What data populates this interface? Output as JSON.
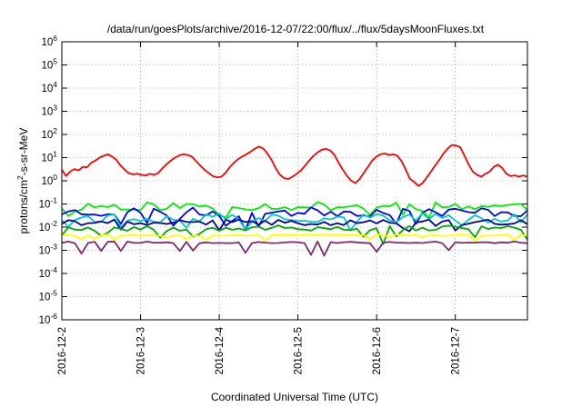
{
  "chart_data": {
    "type": "line",
    "title": "/data/run/goesPlots/archive/2016-12-07/22:00/flux/../flux/5daysMoonFluxes.txt",
    "xlabel": "Coordinated Universal Time (UTC)",
    "ylabel": {
      "pre": "protons/cm",
      "sup": "2",
      "post": "-s-sr-MeV"
    },
    "y_scale": "log",
    "ylim": [
      1e-06,
      1000000.0
    ],
    "y_ticks": [
      {
        "value": 1000000.0,
        "base": "10",
        "exp": "6"
      },
      {
        "value": 100000.0,
        "base": "10",
        "exp": "5"
      },
      {
        "value": 10000.0,
        "base": "10",
        "exp": "4"
      },
      {
        "value": 1000.0,
        "base": "10",
        "exp": "3"
      },
      {
        "value": 100.0,
        "base": "10",
        "exp": "2"
      },
      {
        "value": 10.0,
        "base": "10",
        "exp": "1"
      },
      {
        "value": 1.0,
        "base": "10",
        "exp": "0"
      },
      {
        "value": 0.1,
        "base": "10",
        "exp": "-1"
      },
      {
        "value": 0.01,
        "base": "10",
        "exp": "-2"
      },
      {
        "value": 0.001,
        "base": "10",
        "exp": "-3"
      },
      {
        "value": 0.0001,
        "base": "10",
        "exp": "-4"
      },
      {
        "value": 1e-05,
        "base": "10",
        "exp": "-5"
      },
      {
        "value": 1e-06,
        "base": "10",
        "exp": "-6"
      }
    ],
    "xlim": [
      "2016-12-02",
      "2016-12-07T22:00"
    ],
    "x_ticks": [
      "2016-12-2",
      "2016-12-3",
      "2016-12-4",
      "2016-12-5",
      "2016-12-6",
      "2016-12-7"
    ],
    "grid": true,
    "x_step_hours": 2,
    "series": [
      {
        "color": "#ff0000",
        "values": [
          3,
          1.6,
          2.5,
          3.2,
          2.8,
          4.0,
          3.8,
          6.0,
          7.5,
          10.0,
          12.0,
          14.0,
          11.0,
          8.0,
          4.5,
          3.0,
          2.1,
          1.9,
          2.0,
          1.8,
          1.7,
          2.0,
          1.8,
          2.2,
          3.5,
          5.2,
          7.5,
          10.0,
          12.5,
          14.0,
          13.0,
          11.0,
          7.0,
          4.5,
          3.0,
          2.2,
          1.6,
          1.4,
          1.5,
          2.2,
          3.8,
          6.0,
          8.5,
          11.0,
          14.0,
          18.0,
          24.0,
          30.0,
          25.0,
          15.0,
          8.0,
          3.5,
          1.8,
          1.3,
          1.2,
          1.5,
          2.0,
          2.8,
          4.5,
          7.5,
          12.0,
          17.0,
          22.0,
          24.0,
          20.0,
          13.0,
          6.0,
          3.0,
          1.6,
          1.0,
          0.8,
          1.2,
          2.2,
          4.0,
          7.5,
          11.0,
          14.0,
          15.0,
          13.0,
          14.0,
          12.0,
          7.0,
          3.0,
          1.2,
          0.9,
          0.6,
          0.8,
          1.4,
          2.5,
          4.5,
          8.0,
          15.0,
          25.0,
          35.0,
          33.0,
          28.0,
          12.0,
          5.0,
          2.5,
          1.8,
          1.5,
          2.0,
          2.5,
          4.0,
          5.0,
          3.5,
          2.0,
          1.6,
          1.7,
          1.5,
          1.7,
          1.5
        ]
      },
      {
        "color": "#00ee00",
        "base": 0.08,
        "amp": 0.38,
        "spike": 0.3,
        "seed": 11
      },
      {
        "color": "#0000ff",
        "base": 0.045,
        "amp": 0.4,
        "spike": 0.45,
        "seed": 23
      },
      {
        "color": "#00c8c8",
        "base": 0.025,
        "amp": 0.4,
        "spike": 0.45,
        "seed": 37
      },
      {
        "color": "#0000a0",
        "base": 0.016,
        "amp": 0.25,
        "spike": 0.25,
        "seed": 41
      },
      {
        "color": "#00aa00",
        "base": 0.009,
        "amp": 0.25,
        "spike": 0.4,
        "seed": 53
      },
      {
        "color": "#ffff00",
        "base": 0.0045,
        "amp": 0.06,
        "spike": 0.15,
        "seed": 67
      },
      {
        "color": "#7f2a6e",
        "base": 0.0022,
        "amp": 0.08,
        "spike": 0.4,
        "seed": 79
      }
    ]
  }
}
